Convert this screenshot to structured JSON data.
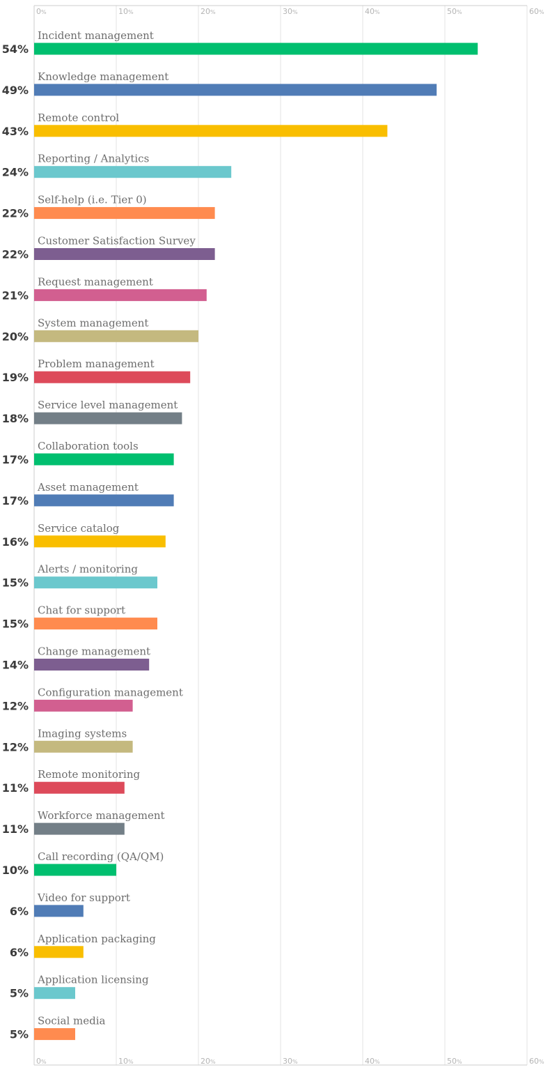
{
  "chart_data": {
    "type": "bar",
    "orientation": "horizontal",
    "title": "",
    "xlabel": "",
    "ylabel": "",
    "xlim": [
      0,
      60
    ],
    "ticks": [
      {
        "value": 0,
        "label": "0%"
      },
      {
        "value": 10,
        "label": "10%"
      },
      {
        "value": 20,
        "label": "20%"
      },
      {
        "value": 30,
        "label": "30%"
      },
      {
        "value": 40,
        "label": "40%"
      },
      {
        "value": 50,
        "label": "50%"
      },
      {
        "value": 60,
        "label": "60%"
      }
    ],
    "tick_positions": [
      "top",
      "bottom"
    ],
    "grid": true,
    "legend": "none",
    "categories": [
      "Incident management",
      "Knowledge management",
      "Remote control",
      "Reporting / Analytics",
      "Self-help (i.e. Tier 0)",
      "Customer Satisfaction Survey",
      "Request management",
      "System management",
      "Problem management",
      "Service level management",
      "Collaboration tools",
      "Asset management",
      "Service catalog",
      "Alerts / monitoring",
      "Chat for support",
      "Change management",
      "Configuration management",
      "Imaging systems",
      "Remote monitoring",
      "Workforce management",
      "Call recording (QA/QM)",
      "Video for support",
      "Application packaging",
      "Application licensing",
      "Social media"
    ],
    "values": [
      54,
      49,
      43,
      24,
      22,
      22,
      21,
      20,
      19,
      18,
      17,
      17,
      16,
      15,
      15,
      14,
      12,
      12,
      11,
      11,
      10,
      6,
      6,
      5,
      5
    ],
    "value_labels": [
      "54%",
      "49%",
      "43%",
      "24%",
      "22%",
      "22%",
      "21%",
      "20%",
      "19%",
      "18%",
      "17%",
      "17%",
      "16%",
      "15%",
      "15%",
      "14%",
      "12%",
      "12%",
      "11%",
      "11%",
      "10%",
      "6%",
      "6%",
      "5%",
      "5%"
    ],
    "colors": [
      "#00bf6f",
      "#507cb6",
      "#f9be00",
      "#6bc8cd",
      "#ff8b4f",
      "#7d5e90",
      "#d25f90",
      "#c4b97f",
      "#dd4a5a",
      "#737f87",
      "#00bf6f",
      "#507cb6",
      "#f9be00",
      "#6bc8cd",
      "#ff8b4f",
      "#7d5e90",
      "#d25f90",
      "#c4b97f",
      "#dd4a5a",
      "#737f87",
      "#00bf6f",
      "#507cb6",
      "#f9be00",
      "#6bc8cd",
      "#ff8b4f"
    ]
  }
}
